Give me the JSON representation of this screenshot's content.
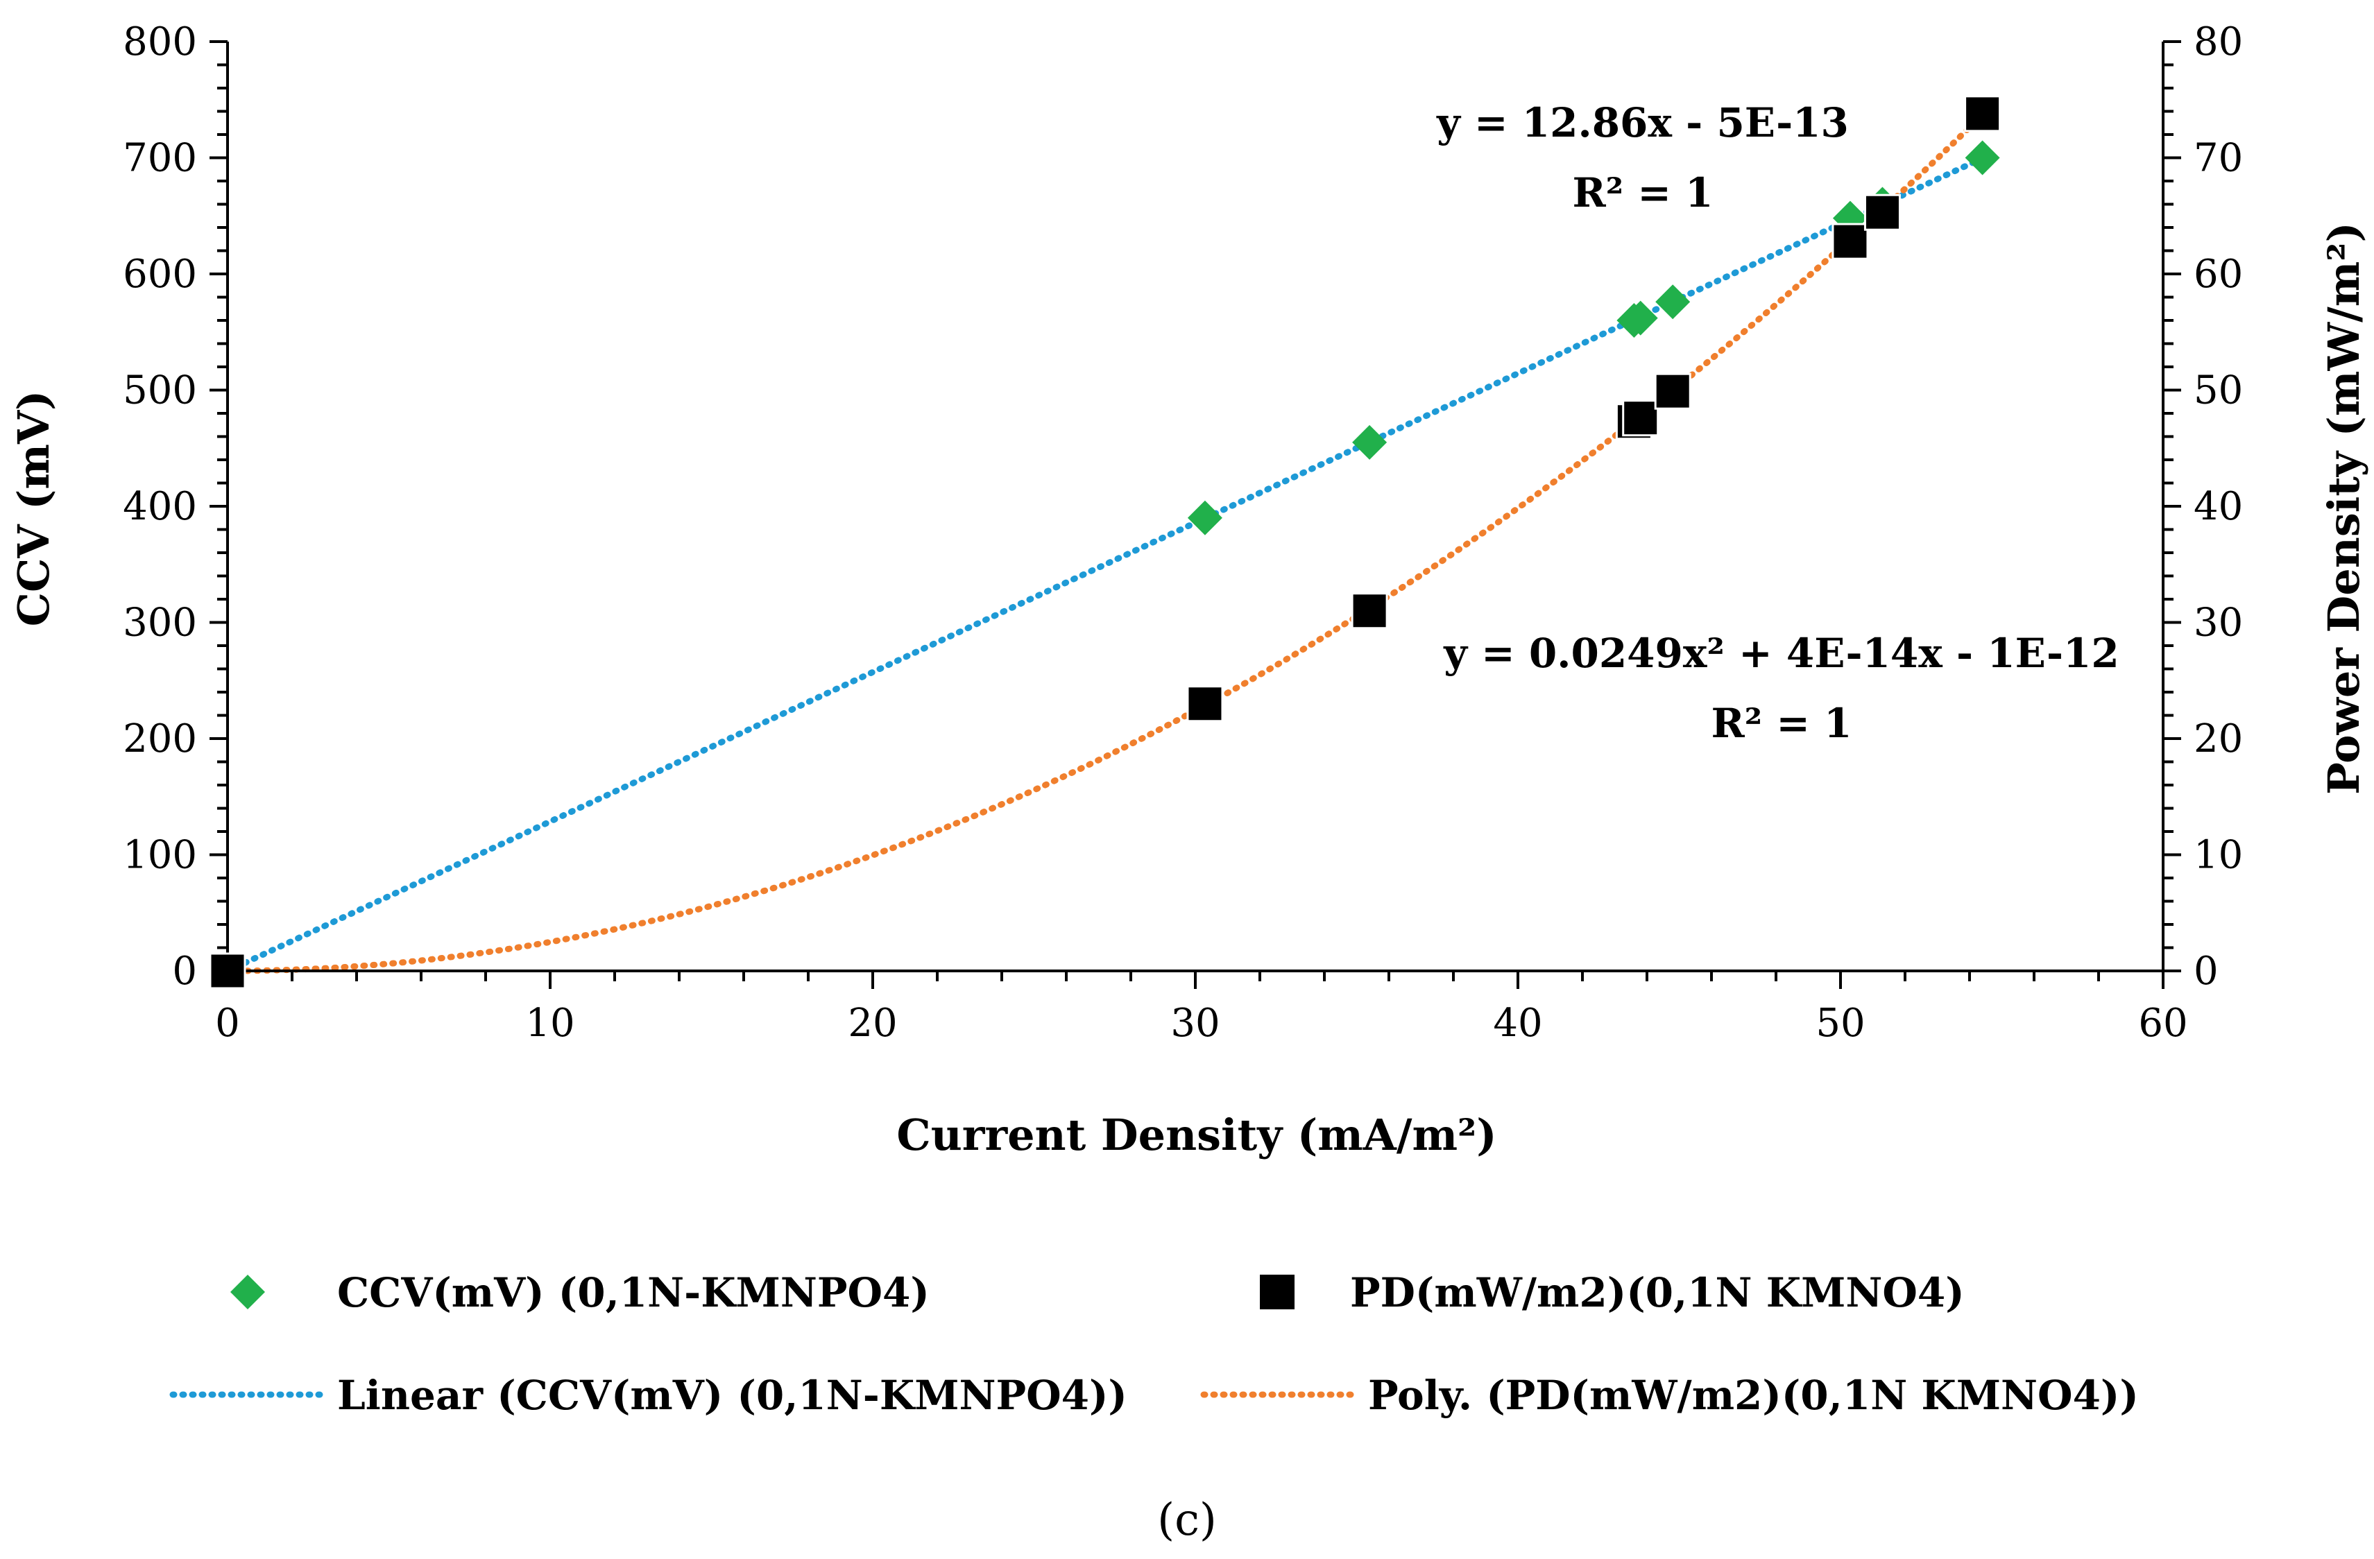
{
  "chart_data": {
    "type": "scatter",
    "xlabel": "Current Density (mA/m²)",
    "ylabel": "CCV (mV)",
    "y2label": "Power Density (mW/m²)",
    "xlim": [
      0,
      60
    ],
    "ylim": [
      0,
      800
    ],
    "y2lim": [
      0,
      80
    ],
    "x_ticks": [
      "0",
      "10",
      "20",
      "30",
      "40",
      "50",
      "60"
    ],
    "y_ticks": [
      "0",
      "100",
      "200",
      "300",
      "400",
      "500",
      "600",
      "700",
      "800"
    ],
    "y2_ticks": [
      "0",
      "10",
      "20",
      "30",
      "40",
      "50",
      "60",
      "70",
      "80"
    ],
    "grid": false,
    "legend_position": "bottom",
    "series": [
      {
        "name": "CCV(mV) (0,1N-KMNPO4)",
        "axis": "left",
        "marker": "diamond",
        "color": "#21B04B",
        "points": [
          [
            0,
            0
          ],
          [
            30.3,
            390
          ],
          [
            35.4,
            455
          ],
          [
            43.6,
            560
          ],
          [
            43.8,
            562
          ],
          [
            44.8,
            576
          ],
          [
            50.3,
            648
          ],
          [
            51.3,
            660
          ],
          [
            54.4,
            700
          ]
        ]
      },
      {
        "name": "PD(mW/m2)(0,1N KMNO4)",
        "axis": "right",
        "marker": "square",
        "color": "#000000",
        "points": [
          [
            0,
            0
          ],
          [
            30.3,
            23
          ],
          [
            35.4,
            31
          ],
          [
            43.6,
            47.3
          ],
          [
            43.8,
            47.6
          ],
          [
            44.8,
            49.9
          ],
          [
            50.3,
            62.8
          ],
          [
            51.3,
            65.3
          ],
          [
            54.4,
            73.8
          ]
        ]
      }
    ],
    "trendlines": [
      {
        "name": "Linear (CCV(mV) (0,1N-KMNPO4))",
        "axis": "left",
        "kind": "linear",
        "color": "#1E9AD6",
        "coefficients": [
          12.86,
          -5e-13
        ],
        "equation": "y = 12.86x - 5E-13",
        "r2": "R² = 1"
      },
      {
        "name": "Poly. (PD(mW/m2)(0,1N KMNO4))",
        "axis": "right",
        "kind": "polynomial",
        "color": "#F07F2D",
        "coefficients": [
          0.0249,
          4e-14,
          -1e-12
        ],
        "equation": "y = 0.0249x² + 4E-14x - 1E-12",
        "r2": "R² = 1"
      }
    ],
    "caption": "(c)"
  }
}
